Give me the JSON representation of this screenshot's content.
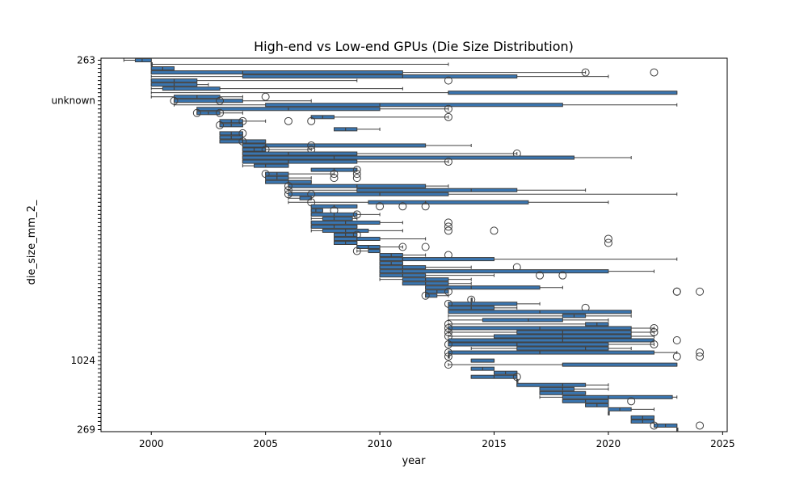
{
  "chart_data": {
    "type": "boxplot",
    "orientation": "horizontal",
    "title": "High-end vs Low-end GPUs (Die Size Distribution)",
    "xlabel": "year",
    "ylabel": "die_size_mm_2_",
    "xlim": [
      1997.8,
      2025.2
    ],
    "xticks": [
      2000,
      2005,
      2010,
      2015,
      2020,
      2025
    ],
    "grid": false,
    "legend": "none",
    "box_color": "#3a75af",
    "edge_color": "#3f3f3f",
    "visible_category_labels": [
      "263",
      "unknown",
      "1024",
      "269"
    ],
    "boxes": [
      {
        "category": "263",
        "whislo": 1998.8,
        "q1": 1999.3,
        "med": 1999.6,
        "q3": 2000.0,
        "whishi": 2000.0,
        "fliers": []
      },
      {
        "category": "",
        "whislo": 2000.0,
        "q1": 2000.0,
        "med": 2000.0,
        "q3": 2000.0,
        "whishi": 2013.0,
        "fliers": []
      },
      {
        "category": "",
        "whislo": 2000.0,
        "q1": 2000.0,
        "med": 2000.5,
        "q3": 2001.0,
        "whishi": 2001.0,
        "fliers": []
      },
      {
        "category": "",
        "whislo": 2000.0,
        "q1": 2000.0,
        "med": 2004.0,
        "q3": 2011.0,
        "whishi": 2019.0,
        "fliers": [
          2019,
          2022
        ]
      },
      {
        "category": "",
        "whislo": 2000.0,
        "q1": 2004.0,
        "med": 2011.0,
        "q3": 2016.0,
        "whishi": 2020.0,
        "fliers": []
      },
      {
        "category": "",
        "whislo": 2000.0,
        "q1": 2000.0,
        "med": 2001.0,
        "q3": 2002.0,
        "whishi": 2009.0,
        "fliers": [
          2013
        ]
      },
      {
        "category": "",
        "whislo": 2000.0,
        "q1": 2000.0,
        "med": 2001.0,
        "q3": 2002.0,
        "whishi": 2002.5,
        "fliers": []
      },
      {
        "category": "",
        "whislo": 2000.0,
        "q1": 2000.5,
        "med": 2001.0,
        "q3": 2003.0,
        "whishi": 2011.0,
        "fliers": []
      },
      {
        "category": "",
        "whislo": 2000.0,
        "q1": 2013.0,
        "med": 2013.0,
        "q3": 2023.0,
        "whishi": 2023.0,
        "fliers": []
      },
      {
        "category": "",
        "whislo": 2000.0,
        "q1": 2001.0,
        "med": 2002.0,
        "q3": 2003.0,
        "whishi": 2004.0,
        "fliers": [
          2005
        ]
      },
      {
        "category": "unknown",
        "whislo": 2001.0,
        "q1": 2001.0,
        "med": 2001.0,
        "q3": 2004.0,
        "whishi": 2007.0,
        "fliers": [
          2001,
          2003
        ]
      },
      {
        "category": "",
        "whislo": 2001.0,
        "q1": 2005.0,
        "med": 2010.0,
        "q3": 2018.0,
        "whishi": 2023.0,
        "fliers": []
      },
      {
        "category": "",
        "whislo": 2002.0,
        "q1": 2002.0,
        "med": 2006.0,
        "q3": 2010.0,
        "whishi": 2013.0,
        "fliers": [
          2013
        ]
      },
      {
        "category": "",
        "whislo": 2002.0,
        "q1": 2002.0,
        "med": 2002.5,
        "q3": 2003.0,
        "whishi": 2004.0,
        "fliers": [
          2002,
          2003
        ]
      },
      {
        "category": "",
        "whislo": 2007.0,
        "q1": 2007.0,
        "med": 2007.5,
        "q3": 2008.0,
        "whishi": 2013.0,
        "fliers": [
          2013
        ]
      },
      {
        "category": "",
        "whislo": 2003.0,
        "q1": 2003.0,
        "med": 2003.5,
        "q3": 2004.0,
        "whishi": 2005.0,
        "fliers": [
          2004,
          2006,
          2007
        ]
      },
      {
        "category": "",
        "whislo": 2003.0,
        "q1": 2003.0,
        "med": 2003.5,
        "q3": 2004.0,
        "whishi": 2004.0,
        "fliers": [
          2003
        ]
      },
      {
        "category": "",
        "whislo": 2008.0,
        "q1": 2008.0,
        "med": 2008.5,
        "q3": 2009.0,
        "whishi": 2010.0,
        "fliers": []
      },
      {
        "category": "",
        "whislo": 2003.0,
        "q1": 2003.0,
        "med": 2003.5,
        "q3": 2004.0,
        "whishi": 2004.0,
        "fliers": [
          2004
        ]
      },
      {
        "category": "",
        "whislo": 2003.0,
        "q1": 2003.0,
        "med": 2003.5,
        "q3": 2004.0,
        "whishi": 2004.0,
        "fliers": []
      },
      {
        "category": "",
        "whislo": 2003.0,
        "q1": 2003.0,
        "med": 2004.0,
        "q3": 2005.0,
        "whishi": 2005.0,
        "fliers": [
          2004
        ]
      },
      {
        "category": "",
        "whislo": 2004.0,
        "q1": 2004.0,
        "med": 2005.0,
        "q3": 2012.0,
        "whishi": 2014.0,
        "fliers": [
          2007
        ]
      },
      {
        "category": "",
        "whislo": 2004.0,
        "q1": 2004.0,
        "med": 2004.5,
        "q3": 2005.0,
        "whishi": 2007.0,
        "fliers": [
          2005,
          2007
        ]
      },
      {
        "category": "",
        "whislo": 2004.0,
        "q1": 2004.0,
        "med": 2006.0,
        "q3": 2009.0,
        "whishi": 2016.0,
        "fliers": [
          2016
        ]
      },
      {
        "category": "",
        "whislo": 2004.0,
        "q1": 2004.0,
        "med": 2008.0,
        "q3": 2018.5,
        "whishi": 2021.0,
        "fliers": []
      },
      {
        "category": "",
        "whislo": 2004.0,
        "q1": 2004.0,
        "med": 2006.0,
        "q3": 2009.0,
        "whishi": 2013.0,
        "fliers": [
          2013
        ]
      },
      {
        "category": "",
        "whislo": 2004.0,
        "q1": 2004.5,
        "med": 2005.0,
        "q3": 2006.0,
        "whishi": 2006.0,
        "fliers": []
      },
      {
        "category": "",
        "whislo": 2007.0,
        "q1": 2007.0,
        "med": 2008.0,
        "q3": 2009.0,
        "whishi": 2009.0,
        "fliers": [
          2009
        ]
      },
      {
        "category": "",
        "whislo": 2005.0,
        "q1": 2005.0,
        "med": 2005.5,
        "q3": 2006.0,
        "whishi": 2008.0,
        "fliers": [
          2005,
          2008,
          2009
        ]
      },
      {
        "category": "",
        "whislo": 2005.0,
        "q1": 2005.0,
        "med": 2005.5,
        "q3": 2006.0,
        "whishi": 2007.0,
        "fliers": [
          2008,
          2009
        ]
      },
      {
        "category": "",
        "whislo": 2005.0,
        "q1": 2005.0,
        "med": 2006.0,
        "q3": 2007.0,
        "whishi": 2007.0,
        "fliers": []
      },
      {
        "category": "",
        "whislo": 2006.0,
        "q1": 2006.0,
        "med": 2009.0,
        "q3": 2012.0,
        "whishi": 2013.0,
        "fliers": [
          2006
        ]
      },
      {
        "category": "",
        "whislo": 2006.0,
        "q1": 2009.0,
        "med": 2014.0,
        "q3": 2016.0,
        "whishi": 2019.0,
        "fliers": [
          2006
        ]
      },
      {
        "category": "",
        "whislo": 2006.0,
        "q1": 2006.0,
        "med": 2010.0,
        "q3": 2013.0,
        "whishi": 2023.0,
        "fliers": [
          2006,
          2007
        ]
      },
      {
        "category": "",
        "whislo": 2006.0,
        "q1": 2006.5,
        "med": 2007.0,
        "q3": 2007.0,
        "whishi": 2007.0,
        "fliers": []
      },
      {
        "category": "",
        "whislo": 2006.0,
        "q1": 2009.5,
        "med": 2012.0,
        "q3": 2016.5,
        "whishi": 2020.0,
        "fliers": [
          2007
        ]
      },
      {
        "category": "",
        "whislo": 2007.0,
        "q1": 2007.0,
        "med": 2008.0,
        "q3": 2009.0,
        "whishi": 2009.0,
        "fliers": [
          2010,
          2011,
          2012
        ]
      },
      {
        "category": "",
        "whislo": 2007.0,
        "q1": 2007.0,
        "med": 2007.2,
        "q3": 2007.5,
        "whishi": 2007.5,
        "fliers": [
          2008
        ]
      },
      {
        "category": "",
        "whislo": 2007.0,
        "q1": 2007.0,
        "med": 2008.0,
        "q3": 2009.0,
        "whishi": 2010.0,
        "fliers": [
          2009
        ]
      },
      {
        "category": "",
        "whislo": 2007.0,
        "q1": 2007.5,
        "med": 2008.0,
        "q3": 2008.8,
        "whishi": 2009.0,
        "fliers": []
      },
      {
        "category": "",
        "whislo": 2007.0,
        "q1": 2007.0,
        "med": 2008.5,
        "q3": 2010.0,
        "whishi": 2011.0,
        "fliers": [
          2013
        ]
      },
      {
        "category": "",
        "whislo": 2007.0,
        "q1": 2007.0,
        "med": 2008.0,
        "q3": 2009.0,
        "whishi": 2009.0,
        "fliers": [
          2013
        ]
      },
      {
        "category": "",
        "whislo": 2007.0,
        "q1": 2007.5,
        "med": 2008.5,
        "q3": 2009.5,
        "whishi": 2011.0,
        "fliers": [
          2013,
          2015
        ]
      },
      {
        "category": "",
        "whislo": 2008.0,
        "q1": 2008.0,
        "med": 2008.5,
        "q3": 2009.0,
        "whishi": 2009.0,
        "fliers": [
          2009
        ]
      },
      {
        "category": "",
        "whislo": 2008.0,
        "q1": 2008.0,
        "med": 2009.0,
        "q3": 2010.0,
        "whishi": 2012.0,
        "fliers": [
          2020
        ]
      },
      {
        "category": "",
        "whislo": 2008.0,
        "q1": 2008.0,
        "med": 2008.5,
        "q3": 2009.0,
        "whishi": 2009.0,
        "fliers": [
          2020
        ]
      },
      {
        "category": "",
        "whislo": 2009.0,
        "q1": 2009.0,
        "med": 2009.5,
        "q3": 2010.0,
        "whishi": 2011.0,
        "fliers": [
          2011,
          2012
        ]
      },
      {
        "category": "",
        "whislo": 2009.0,
        "q1": 2009.5,
        "med": 2010.0,
        "q3": 2010.0,
        "whishi": 2010.0,
        "fliers": [
          2009
        ]
      },
      {
        "category": "",
        "whislo": 2010.0,
        "q1": 2010.0,
        "med": 2010.5,
        "q3": 2011.0,
        "whishi": 2012.0,
        "fliers": [
          2013
        ]
      },
      {
        "category": "",
        "whislo": 2010.0,
        "q1": 2010.0,
        "med": 2011.0,
        "q3": 2015.0,
        "whishi": 2023.0,
        "fliers": []
      },
      {
        "category": "",
        "whislo": 2010.0,
        "q1": 2010.0,
        "med": 2010.5,
        "q3": 2011.0,
        "whishi": 2011.0,
        "fliers": []
      },
      {
        "category": "",
        "whislo": 2010.0,
        "q1": 2010.0,
        "med": 2011.0,
        "q3": 2012.0,
        "whishi": 2014.0,
        "fliers": [
          2016
        ]
      },
      {
        "category": "",
        "whislo": 2010.0,
        "q1": 2010.0,
        "med": 2011.0,
        "q3": 2020.0,
        "whishi": 2022.0,
        "fliers": []
      },
      {
        "category": "",
        "whislo": 2010.0,
        "q1": 2010.0,
        "med": 2011.0,
        "q3": 2012.0,
        "whishi": 2015.0,
        "fliers": [
          2017,
          2018
        ]
      },
      {
        "category": "",
        "whislo": 2010.0,
        "q1": 2011.0,
        "med": 2012.0,
        "q3": 2013.0,
        "whishi": 2014.0,
        "fliers": []
      },
      {
        "category": "",
        "whislo": 2011.0,
        "q1": 2011.0,
        "med": 2012.0,
        "q3": 2013.0,
        "whishi": 2014.0,
        "fliers": []
      },
      {
        "category": "",
        "whislo": 2012.0,
        "q1": 2012.0,
        "med": 2014.0,
        "q3": 2017.0,
        "whishi": 2018.0,
        "fliers": []
      },
      {
        "category": "",
        "whislo": 2012.0,
        "q1": 2012.0,
        "med": 2012.5,
        "q3": 2013.0,
        "whishi": 2013.0,
        "fliers": [
          2013,
          2023,
          2023,
          2024
        ]
      },
      {
        "category": "",
        "whislo": 2012.0,
        "q1": 2012.0,
        "med": 2012.0,
        "q3": 2012.5,
        "whishi": 2013.0,
        "fliers": [
          2012
        ]
      },
      {
        "category": "",
        "whislo": 2014.0,
        "q1": 2014.0,
        "med": 2014.0,
        "q3": 2014.0,
        "whishi": 2014.0,
        "fliers": [
          2014
        ]
      },
      {
        "category": "",
        "whislo": 2013.0,
        "q1": 2013.0,
        "med": 2014.0,
        "q3": 2016.0,
        "whishi": 2017.0,
        "fliers": [
          2013
        ]
      },
      {
        "category": "",
        "whislo": 2013.0,
        "q1": 2013.0,
        "med": 2014.0,
        "q3": 2015.0,
        "whishi": 2016.0,
        "fliers": [
          2019
        ]
      },
      {
        "category": "",
        "whislo": 2013.0,
        "q1": 2013.0,
        "med": 2017.0,
        "q3": 2021.0,
        "whishi": 2021.0,
        "fliers": []
      },
      {
        "category": "",
        "whislo": 2013.0,
        "q1": 2018.0,
        "med": 2018.5,
        "q3": 2019.0,
        "whishi": 2021.0,
        "fliers": []
      },
      {
        "category": "",
        "whislo": 2013.0,
        "q1": 2014.5,
        "med": 2016.5,
        "q3": 2018.0,
        "whishi": 2020.0,
        "fliers": []
      },
      {
        "category": "",
        "whislo": 2013.0,
        "q1": 2019.0,
        "med": 2019.5,
        "q3": 2020.0,
        "whishi": 2020.0,
        "fliers": [
          2013
        ]
      },
      {
        "category": "",
        "whislo": 2013.0,
        "q1": 2013.0,
        "med": 2017.0,
        "q3": 2021.0,
        "whishi": 2022.0,
        "fliers": [
          2013,
          2022
        ]
      },
      {
        "category": "",
        "whislo": 2013.0,
        "q1": 2016.0,
        "med": 2018.0,
        "q3": 2021.0,
        "whishi": 2022.0,
        "fliers": [
          2013,
          2022
        ]
      },
      {
        "category": "",
        "whislo": 2013.0,
        "q1": 2015.0,
        "med": 2018.0,
        "q3": 2021.0,
        "whishi": 2022.0,
        "fliers": [
          2013
        ]
      },
      {
        "category": "",
        "whislo": 2013.0,
        "q1": 2013.0,
        "med": 2018.0,
        "q3": 2022.0,
        "whishi": 2022.0,
        "fliers": [
          2023
        ]
      },
      {
        "category": "",
        "whislo": 2013.0,
        "q1": 2013.0,
        "med": 2016.0,
        "q3": 2020.0,
        "whishi": 2022.0,
        "fliers": [
          2013,
          2022
        ]
      },
      {
        "category": "",
        "whislo": 2014.0,
        "q1": 2016.0,
        "med": 2019.0,
        "q3": 2020.0,
        "whishi": 2021.0,
        "fliers": []
      },
      {
        "category": "",
        "whislo": 2013.0,
        "q1": 2013.0,
        "med": 2017.0,
        "q3": 2022.0,
        "whishi": 2023.0,
        "fliers": [
          2013,
          2024
        ]
      },
      {
        "category": "",
        "whislo": 2013.0,
        "q1": 2013.0,
        "med": 2013.0,
        "q3": 2013.0,
        "whishi": 2013.0,
        "fliers": [
          2013,
          2023,
          2024
        ]
      },
      {
        "category": "1024",
        "whislo": 2014.0,
        "q1": 2014.0,
        "med": 2015.0,
        "q3": 2015.0,
        "whishi": 2015.0,
        "fliers": []
      },
      {
        "category": "",
        "whislo": 2013.0,
        "q1": 2018.0,
        "med": 2018.0,
        "q3": 2023.0,
        "whishi": 2023.0,
        "fliers": [
          2013
        ]
      },
      {
        "category": "",
        "whislo": 2014.0,
        "q1": 2014.0,
        "med": 2014.5,
        "q3": 2015.0,
        "whishi": 2015.0,
        "fliers": []
      },
      {
        "category": "",
        "whislo": 2015.0,
        "q1": 2015.0,
        "med": 2015.5,
        "q3": 2016.0,
        "whishi": 2016.0,
        "fliers": []
      },
      {
        "category": "",
        "whislo": 2014.0,
        "q1": 2014.0,
        "med": 2015.0,
        "q3": 2016.0,
        "whishi": 2016.0,
        "fliers": [
          2016
        ]
      },
      {
        "category": "",
        "whislo": 2016.0,
        "q1": 2016.0,
        "med": 2016.0,
        "q3": 2016.0,
        "whishi": 2016.0,
        "fliers": []
      },
      {
        "category": "",
        "whislo": 2016.0,
        "q1": 2016.0,
        "med": 2018.0,
        "q3": 2019.0,
        "whishi": 2020.0,
        "fliers": []
      },
      {
        "category": "",
        "whislo": 2017.0,
        "q1": 2017.0,
        "med": 2018.0,
        "q3": 2018.5,
        "whishi": 2020.0,
        "fliers": []
      },
      {
        "category": "",
        "whislo": 2017.0,
        "q1": 2017.0,
        "med": 2018.0,
        "q3": 2019.0,
        "whishi": 2019.0,
        "fliers": []
      },
      {
        "category": "",
        "whislo": 2017.0,
        "q1": 2018.0,
        "med": 2020.0,
        "q3": 2022.8,
        "whishi": 2023.0,
        "fliers": []
      },
      {
        "category": "",
        "whislo": 2018.0,
        "q1": 2018.0,
        "med": 2019.0,
        "q3": 2020.0,
        "whishi": 2020.0,
        "fliers": [
          2021
        ]
      },
      {
        "category": "",
        "whislo": 2019.0,
        "q1": 2019.0,
        "med": 2019.5,
        "q3": 2020.0,
        "whishi": 2020.0,
        "fliers": []
      },
      {
        "category": "",
        "whislo": 2020.0,
        "q1": 2020.0,
        "med": 2020.5,
        "q3": 2021.0,
        "whishi": 2022.0,
        "fliers": []
      },
      {
        "category": "",
        "whislo": 2020.0,
        "q1": 2020.0,
        "med": 2020.0,
        "q3": 2020.0,
        "whishi": 2020.0,
        "fliers": []
      },
      {
        "category": "",
        "whislo": 2021.0,
        "q1": 2021.0,
        "med": 2021.5,
        "q3": 2022.0,
        "whishi": 2022.0,
        "fliers": []
      },
      {
        "category": "",
        "whislo": 2021.0,
        "q1": 2021.0,
        "med": 2021.5,
        "q3": 2022.0,
        "whishi": 2022.0,
        "fliers": []
      },
      {
        "category": "",
        "whislo": 2022.0,
        "q1": 2022.0,
        "med": 2022.5,
        "q3": 2023.0,
        "whishi": 2023.0,
        "fliers": [
          2022,
          2024
        ]
      },
      {
        "category": "269",
        "whislo": 2023.0,
        "q1": 2023.0,
        "med": 2023.0,
        "q3": 2023.0,
        "whishi": 2023.0,
        "fliers": []
      }
    ]
  }
}
